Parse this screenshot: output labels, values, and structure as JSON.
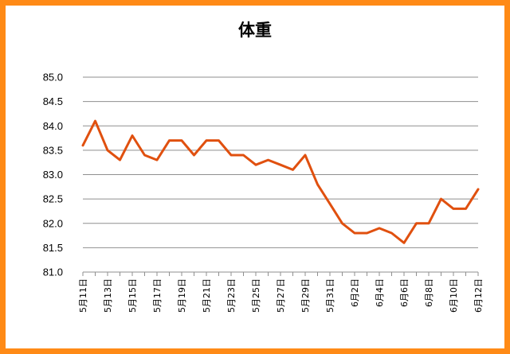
{
  "colors": {
    "frame": "#ff8a16",
    "line": "#e0500f",
    "grid": "#8f8f8f"
  },
  "chart_data": {
    "type": "line",
    "title": "体重",
    "xlabel": "",
    "ylabel": "",
    "ylim": [
      81.0,
      85.0
    ],
    "yticks": [
      "81.0",
      "81.5",
      "82.0",
      "82.5",
      "83.0",
      "83.5",
      "84.0",
      "84.5",
      "85.0"
    ],
    "grid": true,
    "legend": "none",
    "x": [
      "5月11日",
      "5月12日",
      "5月13日",
      "5月14日",
      "5月15日",
      "5月16日",
      "5月17日",
      "5月18日",
      "5月19日",
      "5月20日",
      "5月21日",
      "5月22日",
      "5月23日",
      "5月24日",
      "5月25日",
      "5月26日",
      "5月27日",
      "5月28日",
      "5月29日",
      "5月30日",
      "5月31日",
      "6月1日",
      "6月2日",
      "6月3日",
      "6月4日",
      "6月5日",
      "6月6日",
      "6月7日",
      "6月8日",
      "6月9日",
      "6月10日",
      "6月11日",
      "6月12日"
    ],
    "x_tick_labels": [
      "5月11日",
      "5月13日",
      "5月15日",
      "5月17日",
      "5月19日",
      "5月21日",
      "5月23日",
      "5月25日",
      "5月27日",
      "5月29日",
      "5月31日",
      "6月2日",
      "6月4日",
      "6月6日",
      "6月8日",
      "6月10日",
      "6月12日"
    ],
    "series": [
      {
        "values": [
          83.6,
          84.1,
          83.5,
          83.3,
          83.8,
          83.4,
          83.3,
          83.7,
          83.7,
          83.4,
          83.7,
          83.7,
          83.4,
          83.4,
          83.2,
          83.3,
          83.2,
          83.1,
          83.4,
          82.8,
          82.4,
          82.0,
          81.8,
          81.8,
          81.9,
          81.8,
          81.6,
          82.0,
          82.0,
          82.5,
          82.3,
          82.3,
          82.7
        ]
      }
    ]
  }
}
